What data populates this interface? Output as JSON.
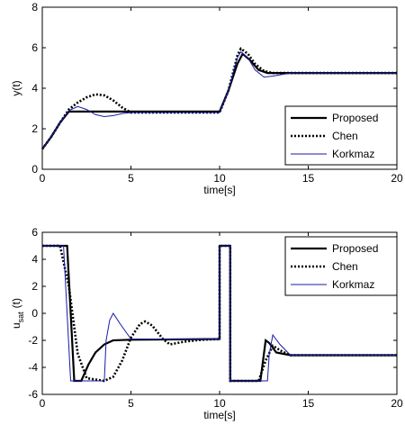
{
  "chart_data": [
    {
      "type": "line",
      "ylabel": "y(t)",
      "xlabel": "time[s]",
      "xlim": [
        0,
        20
      ],
      "ylim": [
        0,
        8
      ],
      "xticks": [
        0,
        5,
        10,
        15,
        20
      ],
      "yticks": [
        0,
        2,
        4,
        6,
        8
      ],
      "legend": "lower right",
      "series": [
        {
          "name": "Proposed",
          "color": "#000000",
          "style": "solid",
          "width": 2.2,
          "x": [
            0,
            0.5,
            1,
            1.5,
            2,
            5,
            10,
            10.5,
            11,
            11.3,
            11.7,
            12.2,
            12.7,
            13.5,
            20
          ],
          "values": [
            1,
            1.6,
            2.3,
            2.85,
            2.85,
            2.85,
            2.85,
            3.9,
            5.2,
            5.7,
            5.4,
            4.9,
            4.75,
            4.75,
            4.75
          ]
        },
        {
          "name": "Chen",
          "color": "#000000",
          "style": "dotted",
          "width": 2.6,
          "x": [
            0,
            0.5,
            1,
            1.5,
            2,
            2.5,
            3,
            3.5,
            4,
            4.5,
            5,
            6,
            10,
            10.5,
            11,
            11.2,
            11.6,
            12,
            12.5,
            13,
            14,
            20
          ],
          "values": [
            1,
            1.6,
            2.3,
            2.95,
            3.3,
            3.55,
            3.7,
            3.65,
            3.4,
            3.05,
            2.8,
            2.8,
            2.8,
            3.9,
            5.6,
            5.95,
            5.7,
            5.2,
            4.85,
            4.75,
            4.75,
            4.75
          ]
        },
        {
          "name": "Korkmaz",
          "color": "#1a1aa6",
          "style": "solid",
          "width": 1,
          "x": [
            0,
            0.5,
            1,
            1.5,
            2,
            2.5,
            3,
            3.5,
            4,
            4.5,
            5,
            10,
            10.5,
            11,
            11.2,
            11.6,
            12,
            12.5,
            13,
            14,
            20
          ],
          "values": [
            1,
            1.6,
            2.3,
            2.9,
            3.1,
            2.95,
            2.7,
            2.6,
            2.65,
            2.75,
            2.8,
            2.8,
            3.9,
            5.5,
            5.8,
            5.5,
            4.9,
            4.55,
            4.6,
            4.75,
            4.75
          ]
        }
      ]
    },
    {
      "type": "line",
      "ylabel": {
        "base": "u",
        "sub": "sat",
        "rest": "(t)"
      },
      "xlabel": "time[s]",
      "xlim": [
        0,
        20
      ],
      "ylim": [
        -6,
        6
      ],
      "xticks": [
        0,
        5,
        10,
        15,
        20
      ],
      "yticks": [
        -6,
        -4,
        -2,
        0,
        2,
        4,
        6
      ],
      "legend": "upper right",
      "series": [
        {
          "name": "Proposed",
          "color": "#000000",
          "style": "solid",
          "width": 2.2,
          "x": [
            0,
            1.4,
            1.8,
            2.2,
            2.6,
            3,
            3.5,
            4,
            5,
            10,
            10,
            10.6,
            10.6,
            12.3,
            12.6,
            12.8,
            13.2,
            14,
            20
          ],
          "values": [
            5,
            5,
            -5,
            -5,
            -3.8,
            -2.9,
            -2.3,
            -2.0,
            -1.95,
            -1.9,
            5,
            5,
            -5,
            -5,
            -2.0,
            -2.2,
            -2.9,
            -3.1,
            -3.1
          ]
        },
        {
          "name": "Chen",
          "color": "#000000",
          "style": "dotted",
          "width": 2.6,
          "x": [
            0,
            1,
            1.5,
            2,
            2.5,
            3.5,
            4,
            4.5,
            5,
            5.5,
            5.8,
            6.2,
            6.8,
            7.2,
            8,
            9,
            10,
            10,
            10.6,
            10.6,
            12.2,
            12.6,
            13,
            13.5,
            14,
            20
          ],
          "values": [
            5,
            5,
            2,
            -3,
            -4.8,
            -5,
            -4.7,
            -3.5,
            -1.8,
            -0.8,
            -0.6,
            -0.9,
            -1.9,
            -2.3,
            -2.1,
            -1.95,
            -1.9,
            5,
            5,
            -5,
            -5,
            -3.5,
            -2.4,
            -2.8,
            -3.1,
            -3.1
          ]
        },
        {
          "name": "Korkmaz",
          "color": "#1a1aa6",
          "style": "solid",
          "width": 1,
          "x": [
            0,
            1.2,
            1.6,
            3.5,
            3.6,
            3.8,
            4,
            4.4,
            5,
            10,
            10,
            10.6,
            10.6,
            12.7,
            12.8,
            13,
            13.4,
            14,
            20
          ],
          "values": [
            5,
            5,
            -5,
            -5,
            -2,
            -0.5,
            0,
            -0.8,
            -1.9,
            -1.9,
            5,
            5,
            -5,
            -5,
            -3,
            -1.6,
            -2.3,
            -3.1,
            -3.1
          ]
        }
      ]
    }
  ]
}
